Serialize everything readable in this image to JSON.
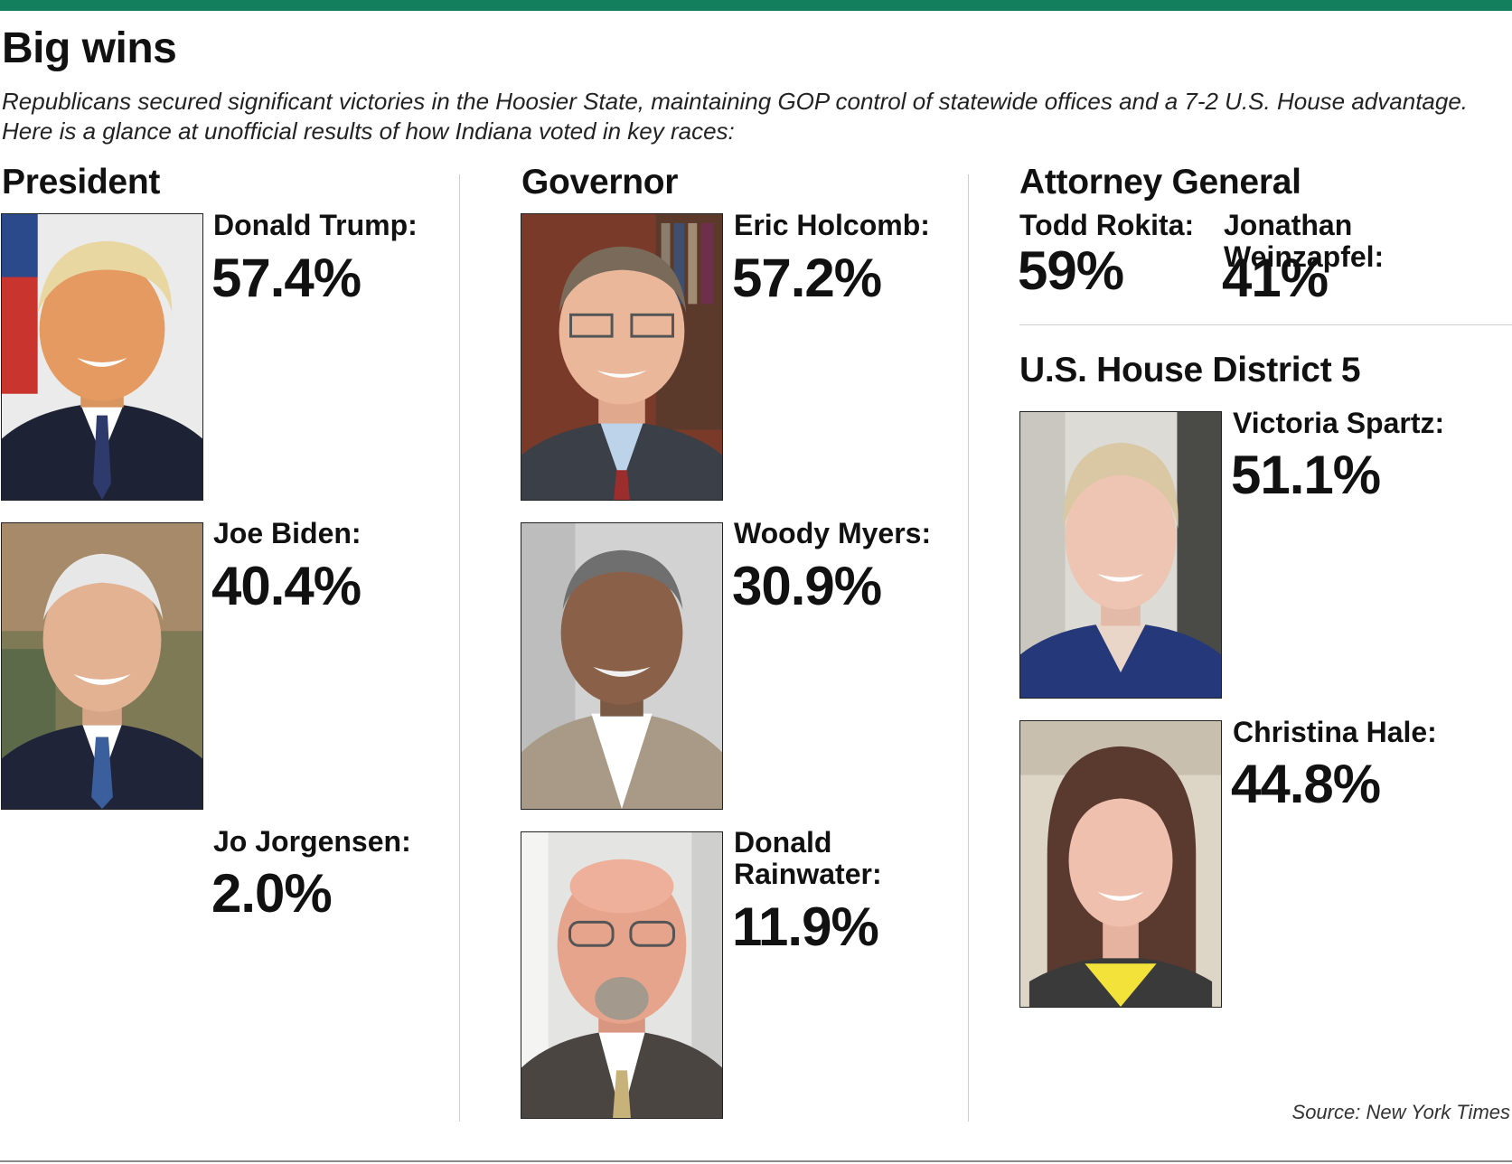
{
  "title": "Big wins",
  "intro": "Republicans secured significant victories in the Hoosier State, maintaining GOP control of statewide offices and a 7-2 U.S. House advantage. Here is a glance at unofficial results of how Indiana voted in key races:",
  "colors": {
    "accent_bar": "#137f5c",
    "rule": "#cfcfcf"
  },
  "president": {
    "heading": "President",
    "candidates": [
      {
        "name": "Donald Trump:",
        "result": "57.4%"
      },
      {
        "name": "Joe Biden:",
        "result": "40.4%"
      },
      {
        "name": "Jo Jorgensen:",
        "result": "2.0%"
      }
    ]
  },
  "governor": {
    "heading": "Governor",
    "candidates": [
      {
        "name": "Eric Holcomb:",
        "result": "57.2%"
      },
      {
        "name": "Woody Myers:",
        "result": "30.9%"
      },
      {
        "name_line1": "Donald",
        "name_line2": "Rainwater:",
        "result": "11.9%"
      }
    ]
  },
  "attorney_general": {
    "heading": "Attorney General",
    "candidates": [
      {
        "name": "Todd Rokita:",
        "result": "59%"
      },
      {
        "name": "Jonathan Weinzapfel:",
        "result": "41%"
      }
    ]
  },
  "house5": {
    "heading": "U.S. House District 5",
    "candidates": [
      {
        "name": "Victoria Spartz:",
        "result": "51.1%"
      },
      {
        "name": "Christina Hale:",
        "result": "44.8%"
      }
    ]
  },
  "source": "Source: New York Times"
}
